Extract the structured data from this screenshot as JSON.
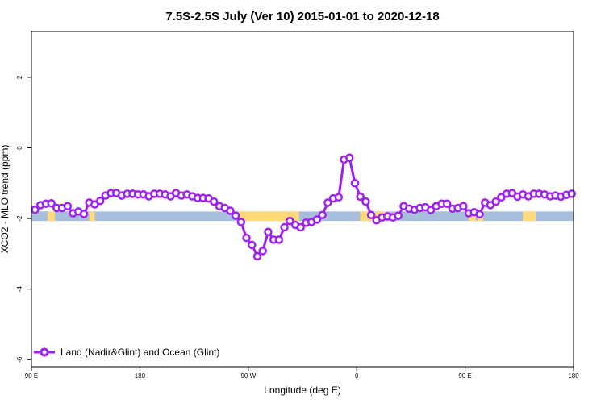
{
  "chart_data": {
    "type": "line",
    "title": "7.5S-2.5S July (Ver 10)   2015-01-01 to 2020-12-18",
    "xlabel": "Longitude (deg E)",
    "ylabel": "XCO2 - MLO trend (ppm)",
    "xlim": [
      30,
      180
    ],
    "ylim": [
      -6.2,
      3.3
    ],
    "x_ticks": [
      30,
      60,
      90,
      120,
      150,
      180
    ],
    "x_tick_labels": [
      "90 E",
      "180",
      "90 W",
      "0",
      "90 E",
      "180"
    ],
    "y_ticks": [
      -6,
      -4,
      -2,
      0,
      2
    ],
    "y_tick_labels": [
      "-6",
      "-4",
      "-2",
      "0",
      "2"
    ],
    "grid": false,
    "legend_position": "bottom-left",
    "series": [
      {
        "name": "Land (Nadir&Glint) and Ocean (Glint)",
        "color": "#A020F0",
        "x": [
          31,
          32.5,
          34,
          35.5,
          37,
          38.5,
          40,
          41.5,
          43,
          44.5,
          46,
          47.5,
          49,
          50.5,
          52,
          53.5,
          55,
          56.5,
          58,
          59.5,
          61,
          62.5,
          64,
          65.5,
          67,
          68.5,
          70,
          71.5,
          73,
          74.5,
          76,
          77.5,
          79,
          80.5,
          82,
          83.5,
          85,
          86.5,
          88,
          89.5,
          91,
          92.5,
          94,
          95.5,
          97,
          98.5,
          100,
          101.5,
          103,
          104.5,
          106,
          107.5,
          109,
          110.5,
          112,
          113.5,
          115,
          116.5,
          118,
          119.5,
          121,
          122.5,
          124,
          125.5,
          127,
          128.5,
          130,
          131.5,
          133,
          134.5,
          136,
          137.5,
          139,
          140.5,
          142,
          143.5,
          145,
          146.5,
          148,
          149.5,
          151,
          152.5,
          154,
          155.5,
          157,
          158.5,
          160,
          161.5,
          163,
          164.5,
          166,
          167.5,
          169,
          170.5,
          172,
          173.5,
          175,
          176.5,
          178,
          179.5
        ],
        "y": [
          -1.75,
          -1.62,
          -1.58,
          -1.57,
          -1.7,
          -1.7,
          -1.65,
          -1.85,
          -1.8,
          -1.87,
          -1.55,
          -1.6,
          -1.5,
          -1.35,
          -1.28,
          -1.28,
          -1.35,
          -1.3,
          -1.3,
          -1.32,
          -1.32,
          -1.37,
          -1.3,
          -1.3,
          -1.32,
          -1.37,
          -1.28,
          -1.35,
          -1.32,
          -1.37,
          -1.42,
          -1.42,
          -1.43,
          -1.52,
          -1.65,
          -1.7,
          -1.78,
          -1.92,
          -2.1,
          -2.55,
          -2.75,
          -3.07,
          -2.92,
          -2.38,
          -2.6,
          -2.6,
          -2.25,
          -2.07,
          -2.18,
          -2.25,
          -2.12,
          -2.1,
          -2.03,
          -1.9,
          -1.55,
          -1.43,
          -1.4,
          -0.33,
          -0.28,
          -1.0,
          -1.38,
          -1.52,
          -1.9,
          -2.05,
          -1.97,
          -1.94,
          -1.97,
          -1.92,
          -1.65,
          -1.72,
          -1.75,
          -1.7,
          -1.68,
          -1.76,
          -1.65,
          -1.58,
          -1.58,
          -1.72,
          -1.7,
          -1.65,
          -1.85,
          -1.82,
          -1.88,
          -1.55,
          -1.62,
          -1.52,
          -1.4,
          -1.3,
          -1.28,
          -1.38,
          -1.32,
          -1.37,
          -1.3,
          -1.3,
          -1.32,
          -1.37,
          -1.35,
          -1.38,
          -1.33,
          -1.3
        ]
      }
    ],
    "surface_band": {
      "y_range": [
        -2.07,
        -1.8
      ],
      "ocean_color": "#A7BFDC",
      "land_color": "#FFD97A",
      "land_x_ranges": [
        [
          34.5,
          36.5
        ],
        [
          46,
          47.5
        ],
        [
          87.5,
          104
        ],
        [
          121,
          128
        ],
        [
          151,
          153
        ],
        [
          153.5,
          155
        ],
        [
          166,
          169.5
        ]
      ]
    }
  }
}
